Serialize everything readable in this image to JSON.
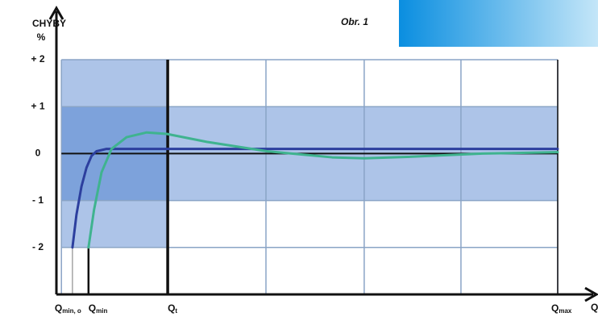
{
  "chart_data": {
    "type": "line",
    "y_label": "CHYBY",
    "y_unit": "%",
    "x_label": "Q",
    "figure_label": "Obr. 1",
    "xlim": [
      0,
      100
    ],
    "ylim": [
      -3,
      3.1
    ],
    "yticks": [
      {
        "value": 2,
        "label": "+ 2"
      },
      {
        "value": 1,
        "label": "+ 1"
      },
      0,
      {
        "value": -1,
        "label": "- 1"
      },
      {
        "value": -2,
        "label": "- 2"
      }
    ],
    "xticks": [
      {
        "value": 3.2,
        "label": "Q",
        "subscript": "min, o",
        "line_top": -2
      },
      {
        "value": 6.4,
        "label": "Q",
        "subscript": "min",
        "line_top": -2
      },
      {
        "value": 22.2,
        "label": "Q",
        "subscript": "t",
        "line_top": 2
      },
      {
        "value": 100,
        "label": "Q",
        "subscript": "max",
        "line_top": 2
      }
    ],
    "xgrid": [
      1,
      22.2,
      41.8,
      61.4,
      80.7,
      100
    ],
    "grid": true,
    "bands": [
      {
        "x": [
          1,
          100
        ],
        "y": [
          -1,
          1
        ]
      },
      {
        "x": [
          1,
          22.2
        ],
        "y": [
          -2,
          2
        ]
      }
    ],
    "series": [
      {
        "color": "#2c3f9e",
        "x": [
          3.2,
          4,
          5,
          6,
          7,
          8,
          10,
          20,
          40,
          60,
          80,
          100
        ],
        "values": [
          -2,
          -1.3,
          -0.7,
          -0.3,
          -0.05,
          0.05,
          0.1,
          0.1,
          0.1,
          0.1,
          0.1,
          0.1
        ]
      },
      {
        "color": "#3fb38f",
        "x": [
          6.4,
          7.5,
          9,
          11,
          14,
          18,
          22,
          30,
          42,
          55,
          61.4,
          70,
          85,
          100
        ],
        "values": [
          -2,
          -1.2,
          -0.4,
          0.1,
          0.35,
          0.45,
          0.42,
          0.25,
          0.05,
          -0.08,
          -0.1,
          -0.07,
          0.0,
          0.03
        ]
      }
    ]
  }
}
